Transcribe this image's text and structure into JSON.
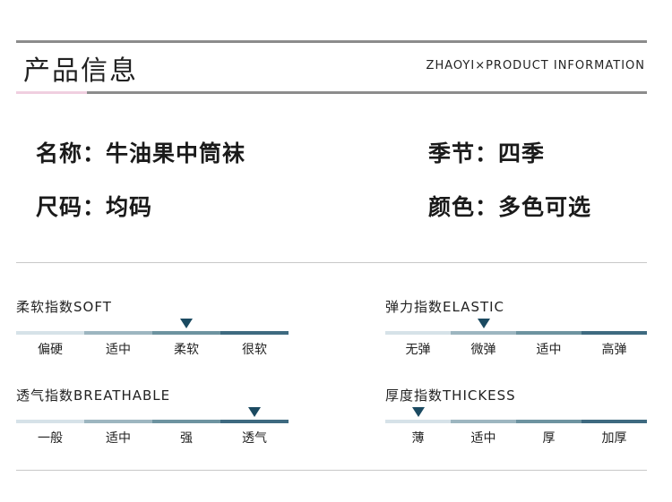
{
  "header": {
    "title": "产品信息",
    "subtitle": "ZHAOYI×PRODUCT INFORMATION",
    "accent_color": "#f0cfe0",
    "line_color": "#8c8c8c"
  },
  "specs": {
    "name": "名称：牛油果中筒袜",
    "season": "季节：四季",
    "size": "尺码：均码",
    "color": "颜色：多色可选"
  },
  "segment_colors": [
    "#d6e2e8",
    "#9db6c0",
    "#6d93a0",
    "#3e6a80"
  ],
  "marker_color": "#1b4a61",
  "gauges": [
    {
      "label": "柔软指数SOFT",
      "levels": [
        "偏硬",
        "适中",
        "柔软",
        "很软"
      ],
      "selected_index": 2
    },
    {
      "label": "弹力指数ELASTIC",
      "levels": [
        "无弹",
        "微弹",
        "适中",
        "高弹"
      ],
      "selected_index": 1
    },
    {
      "label": "透气指数BREATHABLE",
      "levels": [
        "一般",
        "适中",
        "强",
        "透气"
      ],
      "selected_index": 3
    },
    {
      "label": "厚度指数THICKESS",
      "levels": [
        "薄",
        "适中",
        "厚",
        "加厚"
      ],
      "selected_index": 0
    }
  ]
}
